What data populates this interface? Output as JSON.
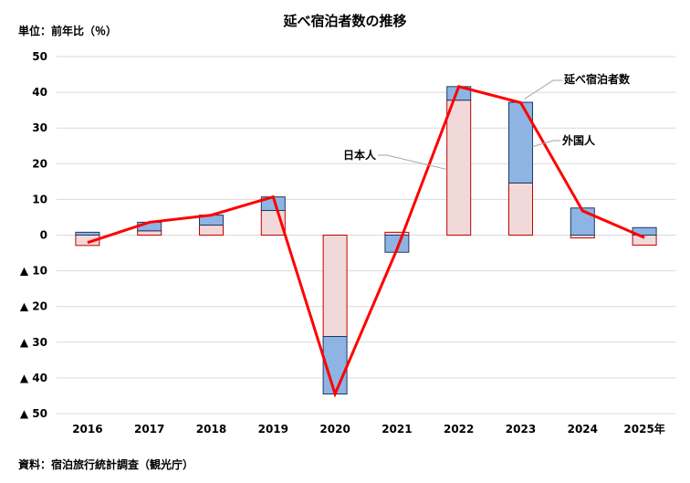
{
  "chart_data": {
    "type": "bar",
    "title": "延べ宿泊者数の推移",
    "unit_label": "単位：前年比（％）",
    "source": "資料：宿泊旅行統計調査（観光庁）",
    "categories": [
      "2016",
      "2017",
      "2018",
      "2019",
      "2020",
      "2021",
      "2022",
      "2023",
      "2024",
      "2025年"
    ],
    "ylim": [
      -50,
      50
    ],
    "yticks": [
      50,
      40,
      30,
      20,
      10,
      0,
      -10,
      -20,
      -30,
      -40,
      -50
    ],
    "ytick_labels": [
      "50",
      "40",
      "30",
      "20",
      "10",
      "0",
      "▲ 10",
      "▲ 20",
      "▲ 30",
      "▲ 40",
      "▲ 50"
    ],
    "grid": true,
    "series": [
      {
        "name": "日本人",
        "kind": "stacked-bar",
        "color": "#f2d9d9",
        "edge": "#c00000",
        "values": [
          -2.9,
          1.2,
          2.8,
          6.9,
          -28.4,
          0.8,
          37.8,
          14.6,
          -0.8,
          -2.8
        ]
      },
      {
        "name": "外国人",
        "kind": "stacked-bar",
        "color": "#8eb4e3",
        "edge": "#1f3864",
        "values": [
          0.8,
          2.4,
          2.8,
          3.8,
          -16.1,
          -4.8,
          3.8,
          22.6,
          7.6,
          2.1
        ]
      },
      {
        "name": "延べ宿泊者数",
        "kind": "line",
        "color": "#ff0000",
        "values": [
          -2.1,
          3.6,
          5.6,
          10.7,
          -44.5,
          -4.0,
          41.6,
          37.1,
          6.8,
          -0.7
        ]
      }
    ],
    "annotations": [
      {
        "text": "延べ宿泊者数",
        "series": "延べ宿泊者数"
      },
      {
        "text": "外国人",
        "series": "外国人"
      },
      {
        "text": "日本人",
        "series": "日本人"
      }
    ]
  }
}
